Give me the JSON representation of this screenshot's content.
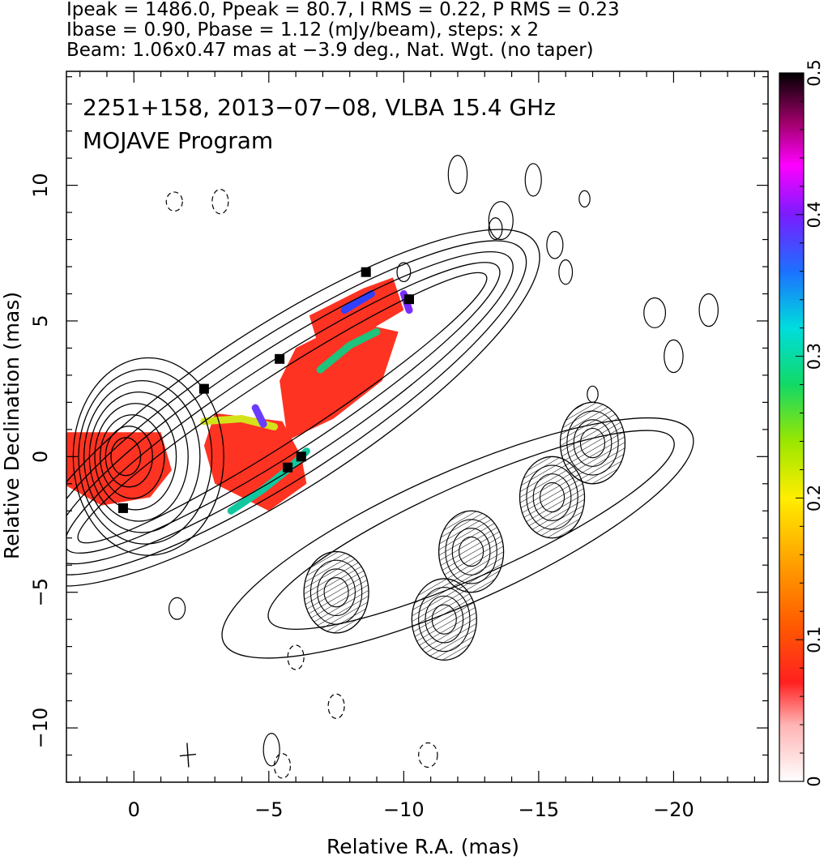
{
  "header": {
    "line1": "Ipeak = 1486.0, Ppeak = 80.7, I RMS = 0.22, P RMS = 0.23",
    "line2": "Ibase = 0.90, Pbase = 1.12 (mJy/beam), steps: x 2",
    "line3": "Beam: 1.06x0.47 mas at −3.9 deg., Nat. Wgt. (no taper)"
  },
  "chart_data": {
    "type": "heatmap",
    "annotation": {
      "line1": "2251+158, 2013−07−08, VLBA 15.4 GHz",
      "line2": "MOJAVE Program"
    },
    "xlabel": "Relative R.A. (mas)",
    "ylabel": "Relative Declination (mas)",
    "xlim": [
      2.5,
      -23.5
    ],
    "ylim": [
      -12,
      14.2
    ],
    "x_ticks": [
      0,
      -5,
      -10,
      -15,
      -20
    ],
    "x_tick_labels": [
      "0",
      "−5",
      "−10",
      "−15",
      "−20"
    ],
    "y_ticks": [
      -10,
      -5,
      0,
      5,
      10
    ],
    "y_tick_labels": [
      "−10",
      "−5",
      "0",
      "5",
      "10"
    ],
    "colorbar": {
      "range": [
        0,
        0.5
      ],
      "ticks": [
        0,
        0.1,
        0.2,
        0.3,
        0.4,
        0.5
      ],
      "tick_labels": [
        "0",
        "0.1",
        "0.2",
        "0.3",
        "0.4",
        "0.5"
      ]
    },
    "core_position": [
      0.3,
      0.0
    ],
    "jet_components": [
      {
        "x": -7.5,
        "y": -5.0
      },
      {
        "x": -11.5,
        "y": -6.0
      },
      {
        "x": -12.5,
        "y": -3.5
      },
      {
        "x": -15.5,
        "y": -1.5
      },
      {
        "x": -17.0,
        "y": 0.5
      }
    ],
    "beam": {
      "major_mas": 1.06,
      "minor_mas": 0.47,
      "pa_deg": -3.9
    }
  }
}
